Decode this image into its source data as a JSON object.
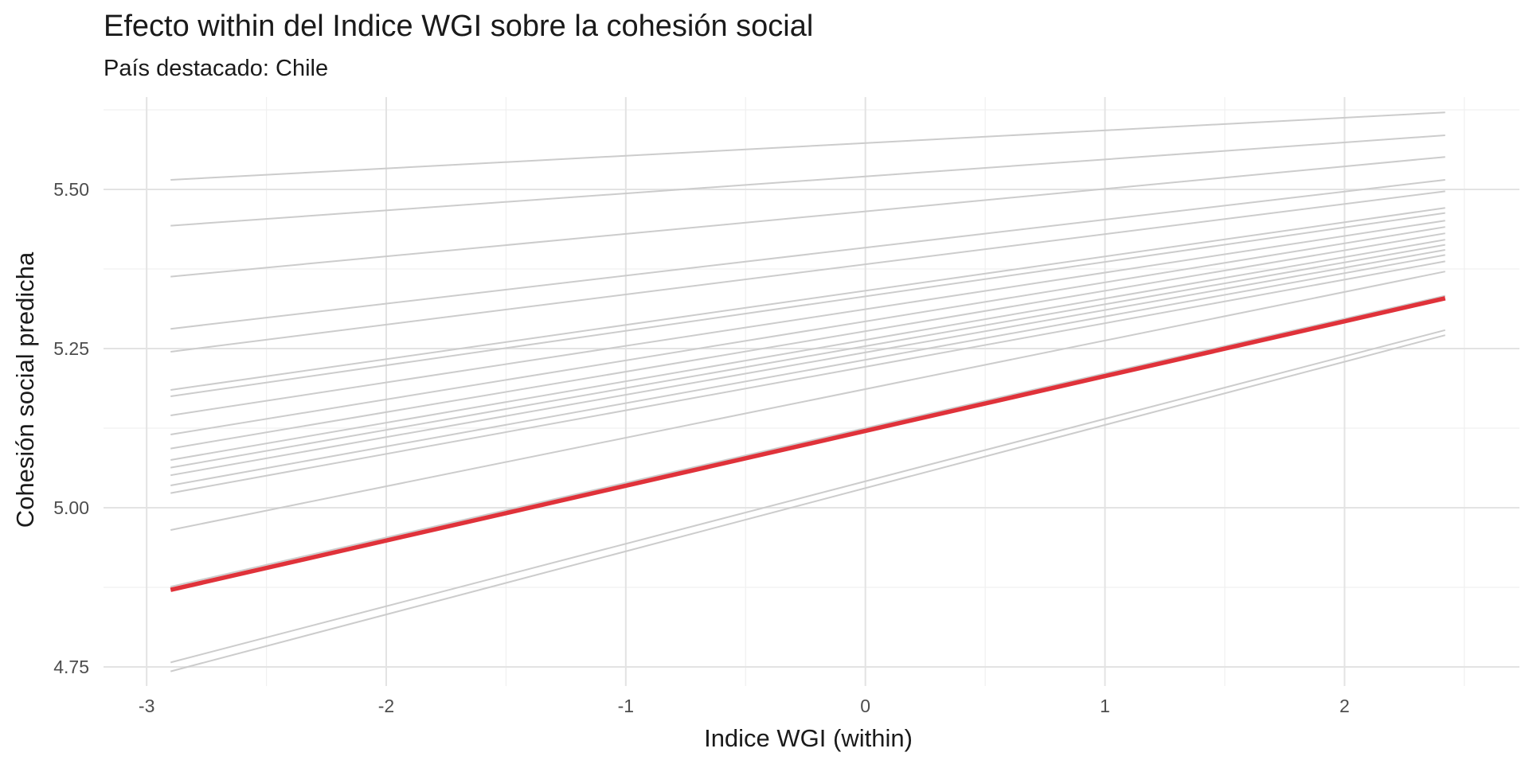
{
  "chart_data": {
    "type": "line",
    "title": "Efecto within del Indice WGI sobre la cohesión social",
    "subtitle": "País destacado: Chile",
    "xlabel": "Indice WGI (within)",
    "ylabel": "Cohesión social predicha",
    "xlim": [
      -3.18,
      2.73
    ],
    "ylim": [
      4.72,
      5.645
    ],
    "x_ticks": [
      -3,
      -2,
      -1,
      0,
      1,
      2
    ],
    "x_tick_labels": [
      "-3",
      "-2",
      "-1",
      "0",
      "1",
      "2"
    ],
    "y_ticks": [
      4.75,
      5.0,
      5.25,
      5.5
    ],
    "y_tick_labels": [
      "4.75",
      "5.00",
      "5.25",
      "5.50"
    ],
    "grid": true,
    "x_range": [
      -2.9,
      2.42
    ],
    "highlight_color": "#e0323a",
    "background_color": "#cccccc",
    "series": [
      {
        "values": [
          5.515,
          5.621
        ],
        "highlight": false
      },
      {
        "values": [
          5.443,
          5.585
        ],
        "highlight": false
      },
      {
        "values": [
          5.363,
          5.551
        ],
        "highlight": false
      },
      {
        "values": [
          5.281,
          5.515
        ],
        "highlight": false
      },
      {
        "values": [
          5.245,
          5.497
        ],
        "highlight": false
      },
      {
        "values": [
          5.185,
          5.471
        ],
        "highlight": false
      },
      {
        "values": [
          5.175,
          5.463
        ],
        "highlight": false
      },
      {
        "values": [
          5.145,
          5.451
        ],
        "highlight": false
      },
      {
        "values": [
          5.115,
          5.441
        ],
        "highlight": false
      },
      {
        "values": [
          5.093,
          5.431
        ],
        "highlight": false
      },
      {
        "values": [
          5.075,
          5.421
        ],
        "highlight": false
      },
      {
        "values": [
          5.063,
          5.413
        ],
        "highlight": false
      },
      {
        "values": [
          5.051,
          5.405
        ],
        "highlight": false
      },
      {
        "values": [
          5.035,
          5.397
        ],
        "highlight": false
      },
      {
        "values": [
          5.023,
          5.387
        ],
        "highlight": false
      },
      {
        "values": [
          4.965,
          5.371
        ],
        "highlight": false
      },
      {
        "values": [
          4.876,
          5.333
        ],
        "highlight": false
      },
      {
        "values": [
          4.757,
          5.279
        ],
        "highlight": false
      },
      {
        "values": [
          4.743,
          5.271
        ],
        "highlight": false
      },
      {
        "name": "Chile",
        "values": [
          4.871,
          5.329
        ],
        "highlight": true
      }
    ]
  }
}
